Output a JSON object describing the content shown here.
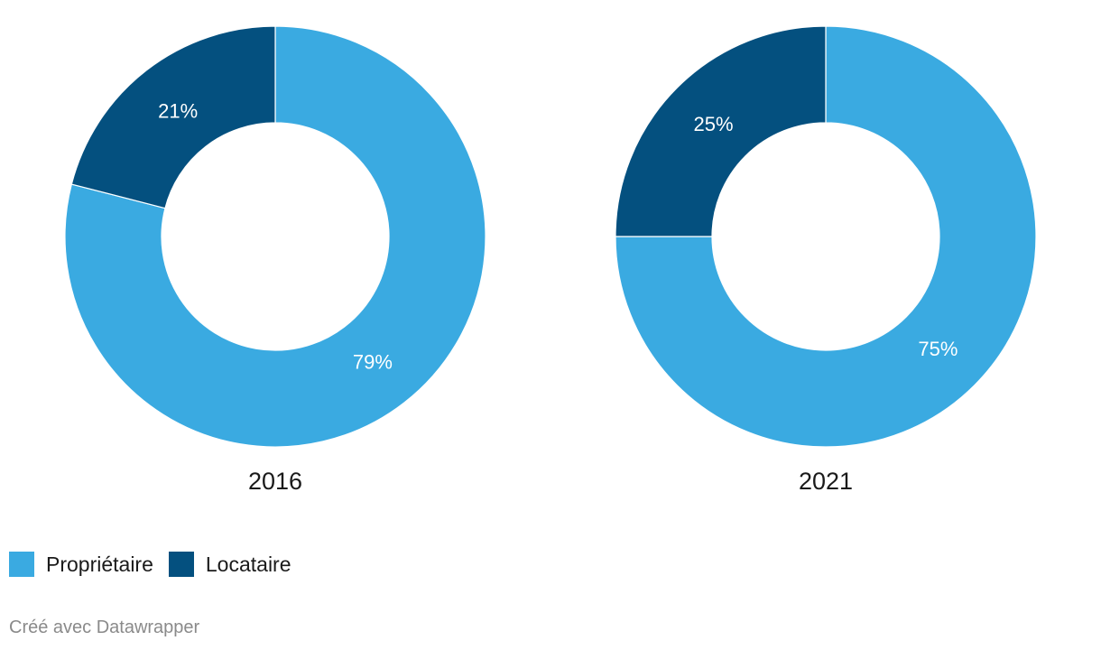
{
  "chart_data": {
    "type": "pie",
    "donut": true,
    "categories": [
      "Propriétaire",
      "Locataire"
    ],
    "colors": {
      "Propriétaire": "#3aaae1",
      "Locataire": "#04507f"
    },
    "charts": [
      {
        "title": "2016",
        "values": {
          "Propriétaire": 79,
          "Locataire": 21
        },
        "labels": {
          "Propriétaire": "79%",
          "Locataire": "21%"
        }
      },
      {
        "title": "2021",
        "values": {
          "Propriétaire": 75,
          "Locataire": 25
        },
        "labels": {
          "Propriétaire": "75%",
          "Locataire": "25%"
        }
      }
    ]
  },
  "legend": {
    "items": [
      {
        "label": "Propriétaire"
      },
      {
        "label": "Locataire"
      }
    ]
  },
  "footer": {
    "text": "Créé avec Datawrapper"
  }
}
